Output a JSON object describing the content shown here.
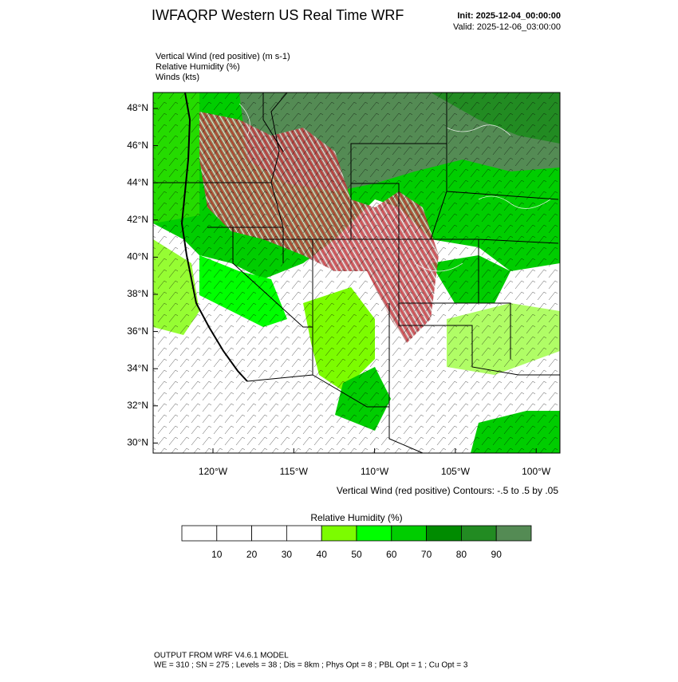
{
  "header": {
    "title": "IWFAQRP Western US Real Time WRF",
    "init": "Init: 2025-12-04_00:00:00",
    "valid": "Valid: 2025-12-06_03:00:00"
  },
  "fields": [
    "Vertical Wind (red positive)   (m s-1)",
    "Relative Humidity   (%)",
    "Winds   (kts)"
  ],
  "map": {
    "lat_labels": [
      "48°N",
      "46°N",
      "44°N",
      "42°N",
      "40°N",
      "38°N",
      "36°N",
      "34°N",
      "32°N",
      "30°N"
    ],
    "lon_labels": [
      "120°W",
      "115°W",
      "110°W",
      "105°W",
      "100°W"
    ],
    "contour_note": "Vertical Wind (red positive) Contours: -.5 to .5 by .05"
  },
  "colorbar": {
    "title": "Relative Humidity  (%)",
    "labels": [
      "10",
      "20",
      "30",
      "40",
      "50",
      "60",
      "70",
      "80",
      "90"
    ],
    "colors": [
      "#ffffff",
      "#ffffff",
      "#ffffff",
      "#ffffff",
      "#7cfc00",
      "#00ff00",
      "#00cd00",
      "#008b00",
      "#228b22",
      "#548b54"
    ]
  },
  "footer": {
    "line1": "OUTPUT FROM WRF V4.6.1 MODEL",
    "line2": "WE = 310 ; SN = 275 ; Levels = 38 ; Dis = 8km ; Phys Opt = 8 ; PBL Opt = 1 ; Cu Opt = 3"
  }
}
